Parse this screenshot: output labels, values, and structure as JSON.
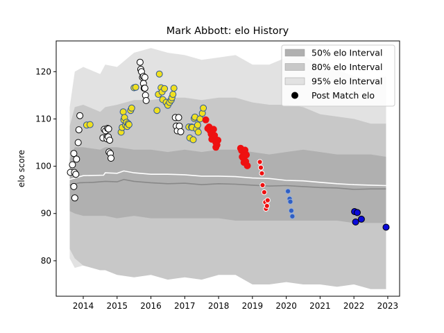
{
  "chart_data": {
    "type": "scatter",
    "title": "Mark Abbott: elo History",
    "xlabel": "",
    "ylabel": "elo score",
    "xlim": [
      2013.2,
      2023.35
    ],
    "ylim": [
      72.5,
      126.5
    ],
    "x_ticks": [
      2014,
      2015,
      2016,
      2017,
      2018,
      2019,
      2020,
      2021,
      2022,
      2023
    ],
    "y_ticks": [
      80,
      90,
      100,
      110,
      120
    ],
    "grid": false,
    "legend": {
      "placement": "top-right",
      "entries": [
        {
          "label": "50% elo Interval",
          "kind": "band",
          "color": "#b0b0b0"
        },
        {
          "label": "80% elo Interval",
          "kind": "band",
          "color": "#c8c8c8"
        },
        {
          "label": "95% elo Interval",
          "kind": "band",
          "color": "#e2e2e2"
        },
        {
          "label": "Post Match elo",
          "kind": "marker",
          "color": "#000000"
        }
      ]
    },
    "bands": {
      "x": [
        2013.6,
        2013.75,
        2014.0,
        2014.5,
        2014.65,
        2015.0,
        2015.5,
        2016.0,
        2016.5,
        2017.0,
        2017.5,
        2018.0,
        2018.5,
        2019.0,
        2019.5,
        2020.0,
        2020.5,
        2021.0,
        2021.5,
        2022.0,
        2022.5,
        2022.95
      ],
      "p95_upper": [
        112.5,
        120.0,
        121.0,
        119.5,
        121.5,
        121.0,
        124.0,
        125.0,
        124.0,
        123.5,
        122.5,
        123.0,
        123.5,
        121.5,
        121.5,
        123.0,
        123.5,
        121.0,
        120.5,
        119.0,
        118.5,
        119.0
      ],
      "p80_upper": [
        108.5,
        112.5,
        113.0,
        111.5,
        112.5,
        113.0,
        114.0,
        114.0,
        114.5,
        114.5,
        114.0,
        114.5,
        114.5,
        113.5,
        113.0,
        113.0,
        112.5,
        111.0,
        110.5,
        110.0,
        109.0,
        109.0
      ],
      "p50_upper": [
        101.5,
        104.0,
        104.0,
        103.5,
        104.0,
        104.0,
        103.5,
        103.5,
        103.0,
        103.5,
        103.0,
        103.5,
        103.5,
        103.0,
        102.5,
        103.0,
        103.5,
        103.0,
        102.5,
        102.5,
        102.5,
        102.0
      ],
      "p50_lower": [
        90.5,
        90.0,
        89.5,
        89.5,
        89.5,
        89.0,
        89.5,
        89.0,
        89.0,
        89.0,
        89.0,
        89.0,
        88.5,
        88.5,
        88.5,
        88.5,
        88.5,
        88.5,
        88.5,
        88.0,
        88.0,
        88.0
      ],
      "p80_lower": [
        82.5,
        80.5,
        79.0,
        78.0,
        78.0,
        77.0,
        76.5,
        77.0,
        76.0,
        76.5,
        76.0,
        77.0,
        77.0,
        75.0,
        75.0,
        75.5,
        75.0,
        75.0,
        74.5,
        75.0,
        74.0,
        74.0
      ],
      "p95_lower": [
        80.5,
        78.5,
        79.0,
        78.0,
        79.5,
        78.0,
        78.5,
        79.5,
        78.0,
        79.5,
        78.5,
        79.0,
        79.0,
        78.5,
        78.5,
        78.5,
        78.0,
        78.0,
        77.5,
        77.0,
        76.0,
        75.0
      ]
    },
    "lines": [
      {
        "kind": "mean",
        "color": "#ffffff",
        "x": [
          2013.6,
          2014.0,
          2014.6,
          2014.65,
          2015.0,
          2015.2,
          2015.5,
          2016.0,
          2016.5,
          2017.0,
          2017.5,
          2018.0,
          2018.5,
          2019.0,
          2019.5,
          2020.0,
          2020.5,
          2021.0,
          2021.5,
          2022.0,
          2022.5,
          2022.95
        ],
        "y": [
          97.2,
          98.0,
          98.1,
          98.6,
          98.5,
          99.0,
          98.6,
          98.3,
          98.3,
          98.2,
          97.9,
          97.9,
          97.8,
          97.5,
          97.4,
          97.0,
          96.9,
          96.6,
          96.3,
          96.1,
          96.0,
          95.9
        ]
      },
      {
        "kind": "median",
        "color": "#888888",
        "x": [
          2013.6,
          2013.9,
          2014.3,
          2014.65,
          2015.0,
          2015.2,
          2015.5,
          2016.0,
          2016.5,
          2017.0,
          2017.5,
          2018.0,
          2018.5,
          2019.0,
          2019.5,
          2020.0,
          2020.5,
          2021.0,
          2021.5,
          2022.0,
          2022.5,
          2022.95
        ],
        "y": [
          96.0,
          96.5,
          96.6,
          96.8,
          96.7,
          97.2,
          96.8,
          96.5,
          96.3,
          96.4,
          96.1,
          96.3,
          96.2,
          96.0,
          95.8,
          95.9,
          95.7,
          95.5,
          95.4,
          95.1,
          95.2,
          95.2
        ]
      }
    ],
    "series": [
      {
        "color": "#ffffff",
        "edge": "#000000",
        "size": "large",
        "points": [
          [
            2013.62,
            98.7
          ],
          [
            2013.68,
            100.3
          ],
          [
            2013.72,
            102.7
          ],
          [
            2013.74,
            98.7
          ],
          [
            2013.78,
            98.3
          ],
          [
            2013.72,
            95.7
          ],
          [
            2013.75,
            93.3
          ],
          [
            2013.8,
            101.5
          ],
          [
            2013.85,
            105.0
          ],
          [
            2013.87,
            107.7
          ],
          [
            2013.9,
            110.7
          ],
          [
            2014.58,
            106.0
          ],
          [
            2014.62,
            107.8
          ],
          [
            2014.66,
            107.5
          ],
          [
            2014.7,
            106.2
          ],
          [
            2014.72,
            108.0
          ],
          [
            2014.7,
            105.8
          ],
          [
            2014.74,
            106.2
          ],
          [
            2014.76,
            103.0
          ],
          [
            2014.78,
            105.5
          ],
          [
            2014.8,
            102.7
          ],
          [
            2014.82,
            101.7
          ],
          [
            2014.75,
            107.9
          ],
          [
            2015.68,
            122.0
          ],
          [
            2015.7,
            120.5
          ],
          [
            2015.72,
            120.0
          ],
          [
            2015.75,
            118.8
          ],
          [
            2015.78,
            119.0
          ],
          [
            2015.78,
            117.5
          ],
          [
            2015.8,
            116.5
          ],
          [
            2015.82,
            116.5
          ],
          [
            2015.84,
            115.0
          ],
          [
            2015.86,
            113.9
          ],
          [
            2015.82,
            118.8
          ],
          [
            2016.72,
            110.3
          ],
          [
            2016.75,
            108.5
          ],
          [
            2016.78,
            107.5
          ],
          [
            2016.82,
            110.3
          ],
          [
            2016.84,
            108.5
          ],
          [
            2016.88,
            107.3
          ]
        ]
      },
      {
        "color": "#f0e020",
        "edge": "#2d5596",
        "size": "large",
        "points": [
          [
            2014.1,
            108.7
          ],
          [
            2014.2,
            108.8
          ],
          [
            2015.12,
            107.2
          ],
          [
            2015.15,
            108.2
          ],
          [
            2015.18,
            111.5
          ],
          [
            2015.2,
            109.8
          ],
          [
            2015.22,
            110.3
          ],
          [
            2015.25,
            108.7
          ],
          [
            2015.28,
            109.3
          ],
          [
            2015.3,
            108.4
          ],
          [
            2015.33,
            109.0
          ],
          [
            2015.35,
            108.8
          ],
          [
            2015.4,
            111.8
          ],
          [
            2015.43,
            112.3
          ],
          [
            2015.5,
            116.6
          ],
          [
            2015.55,
            116.7
          ],
          [
            2016.18,
            111.8
          ],
          [
            2016.22,
            115.2
          ],
          [
            2016.25,
            119.5
          ],
          [
            2016.3,
            116.6
          ],
          [
            2016.33,
            115.7
          ],
          [
            2016.35,
            114.1
          ],
          [
            2016.4,
            116.4
          ],
          [
            2016.45,
            113.5
          ],
          [
            2016.5,
            112.9
          ],
          [
            2016.55,
            113.5
          ],
          [
            2016.6,
            114.0
          ],
          [
            2016.62,
            114.5
          ],
          [
            2016.65,
            115.2
          ],
          [
            2016.68,
            116.5
          ],
          [
            2017.12,
            108.3
          ],
          [
            2017.15,
            106.0
          ],
          [
            2017.2,
            108.3
          ],
          [
            2017.22,
            108.2
          ],
          [
            2017.25,
            105.6
          ],
          [
            2017.28,
            110.1
          ],
          [
            2017.3,
            110.4
          ],
          [
            2017.35,
            107.9
          ],
          [
            2017.38,
            108.7
          ],
          [
            2017.4,
            107.2
          ],
          [
            2017.45,
            110.0
          ],
          [
            2017.52,
            111.2
          ],
          [
            2017.55,
            112.3
          ]
        ]
      },
      {
        "color": "#ee1111",
        "edge": "#ee1111",
        "size": "large",
        "points": [
          [
            2017.62,
            109.8
          ],
          [
            2017.68,
            108.0
          ],
          [
            2017.72,
            108.3
          ],
          [
            2017.75,
            107.5
          ],
          [
            2017.78,
            106.8
          ],
          [
            2017.8,
            105.7
          ],
          [
            2017.85,
            107.8
          ],
          [
            2017.88,
            106.5
          ],
          [
            2017.92,
            104.0
          ],
          [
            2017.95,
            104.5
          ],
          [
            2017.98,
            105.5
          ],
          [
            2017.92,
            105.0
          ],
          [
            2018.65,
            103.8
          ],
          [
            2018.68,
            103.3
          ],
          [
            2018.7,
            102.0
          ],
          [
            2018.72,
            101.8
          ],
          [
            2018.75,
            100.8
          ],
          [
            2018.78,
            103.4
          ],
          [
            2018.8,
            101.0
          ],
          [
            2018.82,
            102.4
          ],
          [
            2018.85,
            100.1
          ]
        ]
      },
      {
        "color": "#ee1111",
        "edge": "#ffffff",
        "size": "small",
        "points": [
          [
            2019.22,
            100.9
          ],
          [
            2019.25,
            99.7
          ],
          [
            2019.28,
            98.5
          ],
          [
            2019.3,
            96.0
          ],
          [
            2019.35,
            94.5
          ],
          [
            2019.38,
            92.4
          ],
          [
            2019.4,
            91.0
          ],
          [
            2019.43,
            91.6
          ],
          [
            2019.45,
            92.8
          ]
        ]
      },
      {
        "color": "#2f5fc4",
        "edge": "#9ab0d8",
        "size": "small",
        "points": [
          [
            2020.05,
            94.7
          ],
          [
            2020.1,
            93.1
          ],
          [
            2020.12,
            92.5
          ],
          [
            2020.15,
            90.6
          ],
          [
            2020.18,
            89.4
          ]
        ]
      },
      {
        "color": "#0a0ad8",
        "edge": "#000000",
        "size": "large",
        "points": [
          [
            2022.02,
            90.4
          ],
          [
            2022.05,
            88.2
          ],
          [
            2022.1,
            90.2
          ],
          [
            2022.22,
            88.8
          ],
          [
            2022.95,
            87.1
          ]
        ]
      }
    ]
  }
}
